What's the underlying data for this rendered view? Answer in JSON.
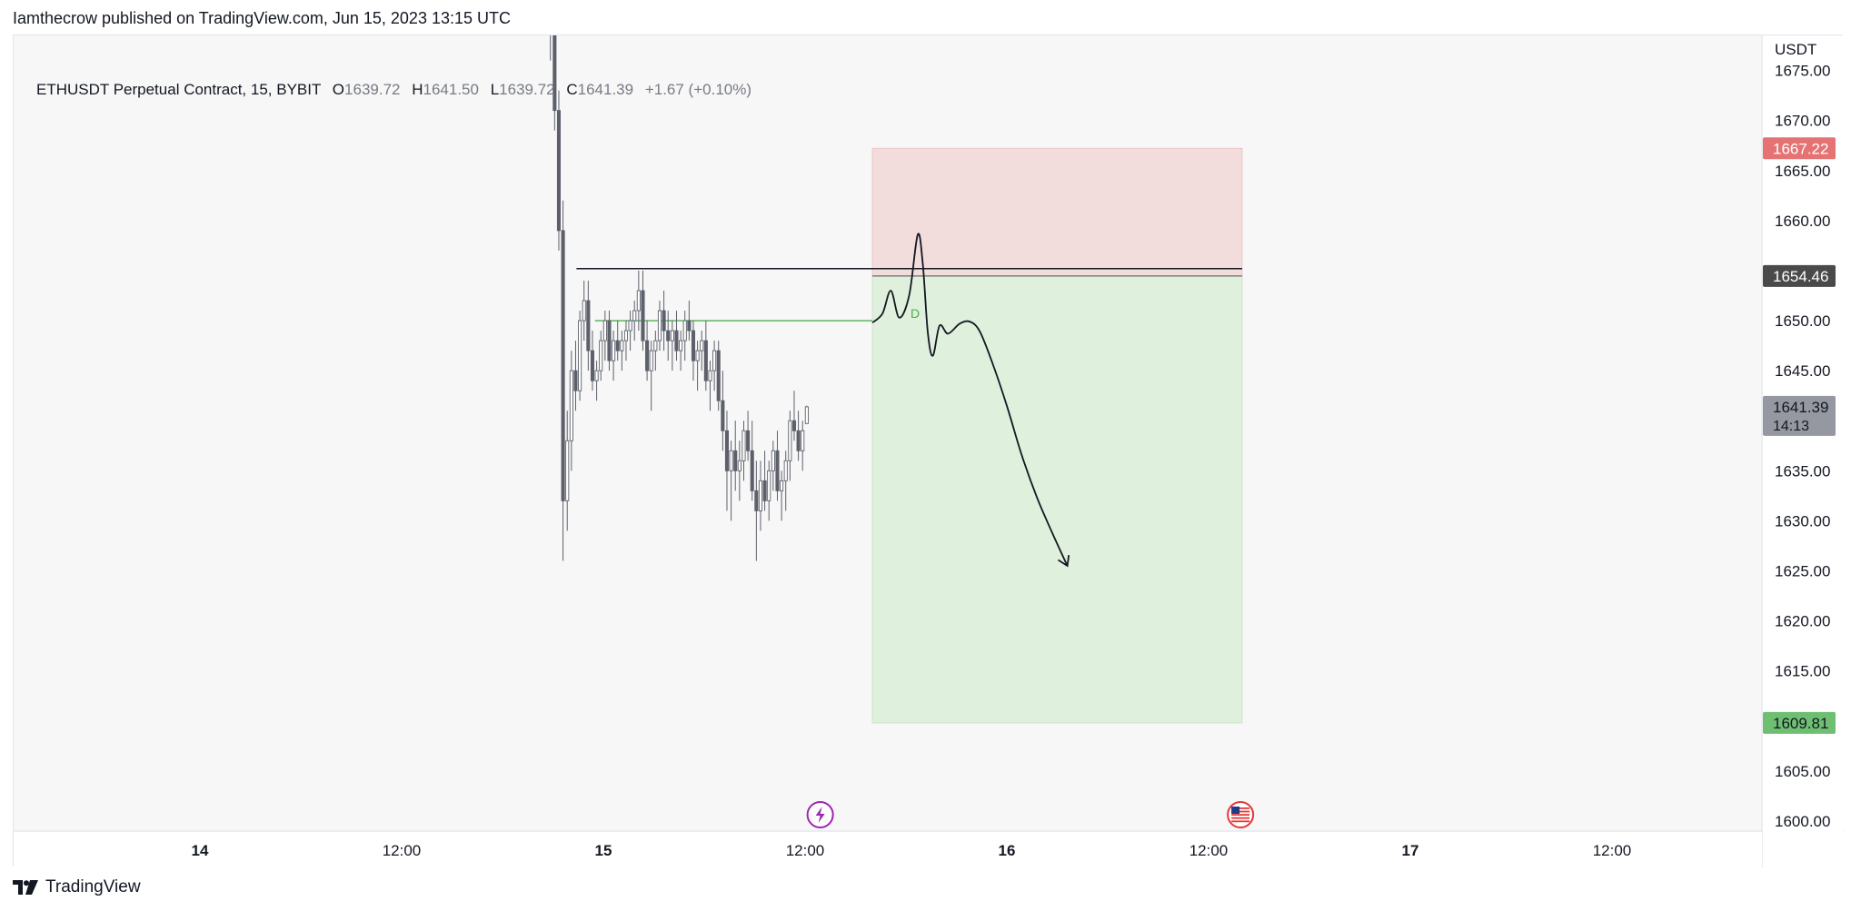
{
  "header": {
    "published_by": "Iamthecrow published on TradingView.com, Jun 15, 2023 13:15 UTC"
  },
  "legend": {
    "symbol": "ETHUSDT Perpetual Contract, 15, BYBIT",
    "open_label": "O",
    "open": "1639.72",
    "high_label": "H",
    "high": "1641.50",
    "low_label": "L",
    "low": "1639.72",
    "close_label": "C",
    "close": "1641.39",
    "change": "+1.67 (+0.10%)"
  },
  "footer": {
    "brand": "TradingView"
  },
  "colors": {
    "background": "#f7f7f7",
    "candle": "#5d606b",
    "stop_zone": "#f2dcdc",
    "target_zone": "#dff0dc",
    "stop_label": "#e57373",
    "target_label": "#6fbf73",
    "entry_label": "#4a4a4a",
    "last_label": "#9598a1",
    "line_green": "#4caf50"
  },
  "chart_data": {
    "type": "candlestick",
    "currency": "USDT",
    "ylim": [
      1599,
      1678.5
    ],
    "y_ticks": [
      1600,
      1605,
      1610,
      1615,
      1620,
      1625,
      1630,
      1635,
      1640,
      1645,
      1650,
      1655,
      1660,
      1665,
      1670,
      1675
    ],
    "y_tick_labels": [
      "1600.00",
      "1605.00",
      "1610.00",
      "1615.00",
      "1620.00",
      "1625.00",
      "1630.00",
      "1635.00",
      "1640.00",
      "1645.00",
      "1650.00",
      "1655.00",
      "1660.00",
      "1665.00",
      "1670.00",
      "1675.00"
    ],
    "x_ticks": [
      {
        "t": 0,
        "label": "14"
      },
      {
        "t": 12,
        "label": "12:00"
      },
      {
        "t": 24,
        "label": "15"
      },
      {
        "t": 36,
        "label": "12:00"
      },
      {
        "t": 48,
        "label": "16"
      },
      {
        "t": 60,
        "label": "12:00"
      },
      {
        "t": 72,
        "label": "17"
      },
      {
        "t": 84,
        "label": "12:00"
      }
    ],
    "x_range_hours": [
      -5.5,
      46.5
    ],
    "candles_start_hour": 20.85,
    "candle_interval_hours": 0.25,
    "candles": [
      [
        1684,
        1686,
        1676,
        1680
      ],
      [
        1680,
        1682,
        1669,
        1671
      ],
      [
        1671,
        1673,
        1657,
        1659
      ],
      [
        1659,
        1662,
        1626,
        1632
      ],
      [
        1632,
        1641,
        1629,
        1638
      ],
      [
        1638,
        1647,
        1635,
        1645
      ],
      [
        1645,
        1648,
        1641,
        1643
      ],
      [
        1643,
        1651,
        1642,
        1650
      ],
      [
        1650,
        1654,
        1648,
        1652
      ],
      [
        1652,
        1654,
        1645,
        1647
      ],
      [
        1647,
        1649,
        1643,
        1644
      ],
      [
        1644,
        1646,
        1642,
        1645
      ],
      [
        1645,
        1649,
        1644,
        1648
      ],
      [
        1648,
        1651,
        1646,
        1650
      ],
      [
        1650,
        1651,
        1645,
        1646
      ],
      [
        1646,
        1649,
        1644,
        1648
      ],
      [
        1648,
        1650,
        1646,
        1647
      ],
      [
        1647,
        1649,
        1645,
        1648
      ],
      [
        1648,
        1650,
        1646,
        1649
      ],
      [
        1649,
        1651,
        1647,
        1650
      ],
      [
        1650,
        1652,
        1648,
        1651
      ],
      [
        1651,
        1655,
        1649,
        1653
      ],
      [
        1653,
        1655,
        1647,
        1648
      ],
      [
        1648,
        1650,
        1644,
        1645
      ],
      [
        1645,
        1648,
        1641,
        1647
      ],
      [
        1647,
        1649,
        1645,
        1648
      ],
      [
        1648,
        1652,
        1647,
        1651
      ],
      [
        1651,
        1653,
        1647,
        1649
      ],
      [
        1649,
        1651,
        1646,
        1648
      ],
      [
        1648,
        1650,
        1645,
        1649
      ],
      [
        1649,
        1651,
        1646,
        1647
      ],
      [
        1647,
        1649,
        1645,
        1648
      ],
      [
        1648,
        1651,
        1646,
        1650
      ],
      [
        1650,
        1652,
        1648,
        1649
      ],
      [
        1649,
        1650,
        1644,
        1646
      ],
      [
        1646,
        1648,
        1643,
        1647
      ],
      [
        1647,
        1649,
        1645,
        1648
      ],
      [
        1648,
        1650,
        1643,
        1644
      ],
      [
        1644,
        1646,
        1641,
        1645
      ],
      [
        1645,
        1648,
        1643,
        1647
      ],
      [
        1647,
        1648,
        1641,
        1642
      ],
      [
        1642,
        1645,
        1637,
        1639
      ],
      [
        1639,
        1641,
        1631,
        1635
      ],
      [
        1635,
        1638,
        1630,
        1637
      ],
      [
        1637,
        1640,
        1633,
        1635
      ],
      [
        1635,
        1638,
        1632,
        1636
      ],
      [
        1636,
        1640,
        1634,
        1639
      ],
      [
        1639,
        1641,
        1636,
        1637
      ],
      [
        1637,
        1640,
        1632,
        1633
      ],
      [
        1633,
        1636,
        1626,
        1631
      ],
      [
        1631,
        1636,
        1629,
        1634
      ],
      [
        1634,
        1637,
        1631,
        1632
      ],
      [
        1632,
        1636,
        1630,
        1635
      ],
      [
        1635,
        1638,
        1633,
        1637
      ],
      [
        1637,
        1639,
        1632,
        1633
      ],
      [
        1633,
        1635,
        1630,
        1634
      ],
      [
        1634,
        1637,
        1631,
        1636
      ],
      [
        1636,
        1641,
        1634,
        1640
      ],
      [
        1640,
        1643,
        1638,
        1639
      ],
      [
        1639,
        1641,
        1636,
        1637
      ],
      [
        1637,
        1640,
        1635,
        1639
      ],
      [
        1639.72,
        1641.5,
        1639.72,
        1641.39
      ]
    ],
    "stop_zone": {
      "top": 1667.22,
      "bottom": 1654.46,
      "start_hour": 40,
      "end_hour": 62
    },
    "target_zone": {
      "top": 1654.46,
      "bottom": 1609.81,
      "start_hour": 40,
      "end_hour": 62
    },
    "horizontal_lines": [
      {
        "value": 1655.2,
        "start_hour": 22.4,
        "end_hour": 62,
        "color": "#131722"
      },
      {
        "value": 1650,
        "start_hour": 23.5,
        "end_hour": 40,
        "color": "#4caf50",
        "label": "D"
      }
    ],
    "projection_path": [
      [
        40,
        1649.8
      ],
      [
        40.6,
        1650.7
      ],
      [
        41.1,
        1653
      ],
      [
        41.6,
        1650.3
      ],
      [
        42.2,
        1652.6
      ],
      [
        42.7,
        1658.6
      ],
      [
        43,
        1655.7
      ],
      [
        43.3,
        1648.8
      ],
      [
        43.6,
        1646.5
      ],
      [
        44,
        1649.5
      ],
      [
        44.5,
        1648.7
      ],
      [
        45.2,
        1649.7
      ],
      [
        45.8,
        1649.9
      ],
      [
        46.4,
        1648.9
      ],
      [
        47.2,
        1645.5
      ],
      [
        48,
        1641.5
      ],
      [
        48.9,
        1636.5
      ],
      [
        49.8,
        1632.3
      ],
      [
        50.7,
        1628.8
      ],
      [
        51.6,
        1625.5
      ]
    ],
    "price_labels": [
      {
        "value": 1667.22,
        "text": "1667.22",
        "kind": "stop"
      },
      {
        "value": 1654.46,
        "text": "1654.46",
        "kind": "entry"
      },
      {
        "value": 1641.39,
        "text": "1641.39",
        "sub": "14:13",
        "kind": "last"
      },
      {
        "value": 1609.81,
        "text": "1609.81",
        "kind": "target"
      }
    ],
    "event_markers": [
      {
        "hour": 36.9,
        "icon": "lightning-icon"
      },
      {
        "hour": 61.9,
        "icon": "us-flag-icon"
      }
    ]
  }
}
